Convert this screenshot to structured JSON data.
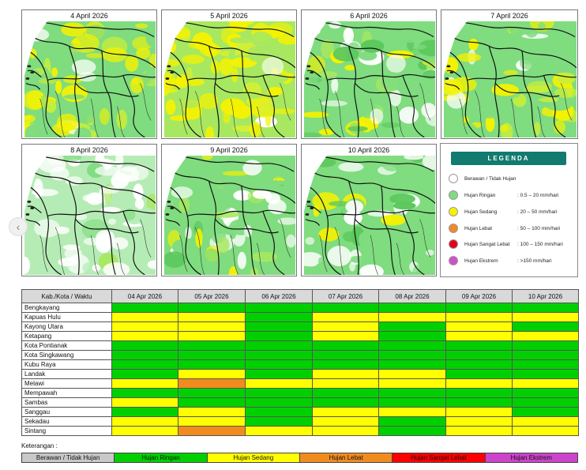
{
  "maps": [
    {
      "date": "4 April 2026",
      "scheme": "yellowish"
    },
    {
      "date": "5 April 2026",
      "scheme": "yellow"
    },
    {
      "date": "6 April 2026",
      "scheme": "green"
    },
    {
      "date": "7 April 2026",
      "scheme": "yellowish"
    },
    {
      "date": "8 April 2026",
      "scheme": "whitish"
    },
    {
      "date": "9 April 2026",
      "scheme": "green"
    },
    {
      "date": "10 April 2026",
      "scheme": "mixed"
    }
  ],
  "legend": {
    "title": "LEGENDA",
    "items": [
      {
        "label": "Berawan / Tidak Hujan",
        "range": "",
        "color": "#ffffff"
      },
      {
        "label": "Hujan Ringan",
        "range": ": 0.5 – 20 mm/hari",
        "color": "#7fdc7f"
      },
      {
        "label": "Hujan Sedang",
        "range": ": 20 – 50 mm/hari",
        "color": "#f5f200"
      },
      {
        "label": "Hujan Lebat",
        "range": ": 50 – 100 mm/hari",
        "color": "#f08a24"
      },
      {
        "label": "Hujan Sangat Lebat",
        "range": ": 100 – 150 mm/hari",
        "color": "#e3001b"
      },
      {
        "label": "Hujan Ekstrem",
        "range": ": >150 mm/hari",
        "color": "#d24fc8"
      }
    ]
  },
  "colors": {
    "G": "#00d000",
    "Y": "#ffff00",
    "O": "#f08c1e",
    "R": "#ff0000",
    "P": "#cc44cc",
    "W": "#c8c8c8"
  },
  "table": {
    "header": "Kab./Kota / Waktu",
    "dates": [
      "04 Apr 2026",
      "05 Apr 2026",
      "06 Apr 2026",
      "07 Apr 2026",
      "08 Apr 2026",
      "09 Apr 2026",
      "10 Apr 2026"
    ],
    "rows": [
      {
        "name": "Bengkayang",
        "cells": [
          "G",
          "G",
          "G",
          "G",
          "G",
          "G",
          "G"
        ]
      },
      {
        "name": "Kapuas Hulu",
        "cells": [
          "Y",
          "Y",
          "G",
          "Y",
          "Y",
          "Y",
          "Y"
        ]
      },
      {
        "name": "Kayong Utara",
        "cells": [
          "Y",
          "Y",
          "G",
          "Y",
          "G",
          "Y",
          "G"
        ]
      },
      {
        "name": "Ketapang",
        "cells": [
          "Y",
          "Y",
          "G",
          "Y",
          "G",
          "Y",
          "Y"
        ]
      },
      {
        "name": "Kota Pontianak",
        "cells": [
          "G",
          "G",
          "G",
          "G",
          "G",
          "G",
          "G"
        ]
      },
      {
        "name": "Kota Singkawang",
        "cells": [
          "G",
          "G",
          "G",
          "G",
          "G",
          "G",
          "G"
        ]
      },
      {
        "name": "Kubu Raya",
        "cells": [
          "G",
          "G",
          "G",
          "G",
          "G",
          "G",
          "G"
        ]
      },
      {
        "name": "Landak",
        "cells": [
          "G",
          "Y",
          "G",
          "Y",
          "Y",
          "G",
          "G"
        ]
      },
      {
        "name": "Melawi",
        "cells": [
          "Y",
          "O",
          "Y",
          "Y",
          "Y",
          "Y",
          "Y"
        ]
      },
      {
        "name": "Mempawah",
        "cells": [
          "G",
          "G",
          "G",
          "G",
          "G",
          "G",
          "G"
        ]
      },
      {
        "name": "Sambas",
        "cells": [
          "Y",
          "G",
          "G",
          "G",
          "G",
          "G",
          "G"
        ]
      },
      {
        "name": "Sanggau",
        "cells": [
          "G",
          "Y",
          "G",
          "Y",
          "Y",
          "Y",
          "G"
        ]
      },
      {
        "name": "Sekadau",
        "cells": [
          "Y",
          "Y",
          "G",
          "Y",
          "G",
          "Y",
          "Y"
        ]
      },
      {
        "name": "Sintang",
        "cells": [
          "Y",
          "O",
          "Y",
          "Y",
          "G",
          "Y",
          "Y"
        ]
      }
    ]
  },
  "keterangan": {
    "title": "Keterangan :",
    "items": [
      {
        "label": "Berawan / Tidak Hujan",
        "key": "W",
        "text": "#111111"
      },
      {
        "label": "Hujan Ringan",
        "key": "G",
        "text": "#111111"
      },
      {
        "label": "Hujan Sedang",
        "key": "Y",
        "text": "#111111"
      },
      {
        "label": "Hujan Lebat",
        "key": "O",
        "text": "#111111"
      },
      {
        "label": "Hujan Sangat Lebat",
        "key": "R",
        "text": "#111111"
      },
      {
        "label": "Hujan Ekstrem",
        "key": "P",
        "text": "#111111"
      }
    ]
  }
}
